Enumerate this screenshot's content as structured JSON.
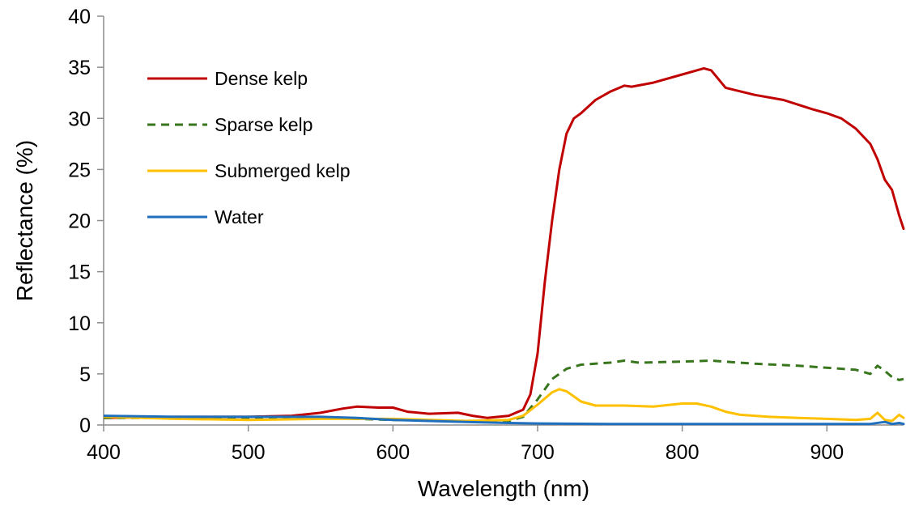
{
  "chart_data": {
    "type": "line",
    "xlabel": "Wavelength (nm)",
    "ylabel": "Reflectance (%)",
    "xlim": [
      400,
      953
    ],
    "ylim": [
      0,
      40
    ],
    "x_ticks": [
      400,
      500,
      600,
      700,
      800,
      900
    ],
    "y_ticks": [
      0,
      5,
      10,
      15,
      20,
      25,
      30,
      35,
      40
    ],
    "grid": false,
    "legend_position": "top-left",
    "series": [
      {
        "name": "Dense kelp",
        "color": "#c00000",
        "dash": "solid",
        "x": [
          400,
          450,
          500,
          530,
          550,
          565,
          575,
          590,
          600,
          610,
          625,
          645,
          655,
          665,
          680,
          690,
          695,
          700,
          705,
          710,
          715,
          720,
          725,
          730,
          740,
          750,
          760,
          765,
          780,
          800,
          810,
          815,
          820,
          830,
          850,
          870,
          890,
          900,
          910,
          920,
          930,
          935,
          940,
          945,
          950,
          953
        ],
        "y": [
          0.7,
          0.8,
          0.8,
          0.9,
          1.2,
          1.6,
          1.8,
          1.7,
          1.7,
          1.3,
          1.1,
          1.2,
          0.9,
          0.7,
          0.9,
          1.5,
          3.0,
          7.0,
          14.0,
          20.0,
          25.0,
          28.5,
          30.0,
          30.5,
          31.8,
          32.6,
          33.2,
          33.1,
          33.5,
          34.3,
          34.7,
          34.9,
          34.7,
          33.0,
          32.3,
          31.8,
          30.9,
          30.5,
          30.0,
          29.0,
          27.5,
          26.0,
          24.0,
          23.0,
          20.5,
          19.2
        ]
      },
      {
        "name": "Sparse kelp",
        "color": "#38761d",
        "dash": "dashed",
        "x": [
          400,
          450,
          500,
          550,
          600,
          650,
          680,
          690,
          700,
          710,
          720,
          730,
          750,
          760,
          770,
          800,
          820,
          850,
          880,
          900,
          920,
          930,
          935,
          940,
          945,
          950,
          953
        ],
        "y": [
          0.7,
          0.7,
          0.7,
          0.7,
          0.5,
          0.4,
          0.4,
          0.8,
          2.5,
          4.5,
          5.5,
          5.9,
          6.1,
          6.3,
          6.1,
          6.2,
          6.3,
          6.0,
          5.8,
          5.6,
          5.4,
          5.0,
          5.8,
          5.3,
          4.7,
          4.4,
          4.5
        ]
      },
      {
        "name": "Submerged kelp",
        "color": "#ffc000",
        "dash": "solid",
        "x": [
          400,
          450,
          500,
          550,
          600,
          650,
          680,
          690,
          700,
          710,
          715,
          720,
          725,
          730,
          740,
          760,
          780,
          800,
          810,
          820,
          830,
          840,
          860,
          880,
          900,
          920,
          930,
          935,
          940,
          945,
          950,
          953
        ],
        "y": [
          0.8,
          0.6,
          0.5,
          0.6,
          0.6,
          0.4,
          0.5,
          0.9,
          2.0,
          3.2,
          3.5,
          3.3,
          2.8,
          2.3,
          1.9,
          1.9,
          1.8,
          2.1,
          2.1,
          1.8,
          1.3,
          1.0,
          0.8,
          0.7,
          0.6,
          0.5,
          0.6,
          1.2,
          0.5,
          0.4,
          1.0,
          0.7
        ]
      },
      {
        "name": "Water",
        "color": "#1f6fbf",
        "dash": "solid",
        "x": [
          400,
          450,
          500,
          550,
          575,
          600,
          650,
          680,
          700,
          750,
          800,
          850,
          900,
          930,
          940,
          945,
          950,
          953
        ],
        "y": [
          0.9,
          0.8,
          0.8,
          0.8,
          0.7,
          0.5,
          0.3,
          0.2,
          0.15,
          0.1,
          0.1,
          0.1,
          0.1,
          0.1,
          0.3,
          0.1,
          0.2,
          0.1
        ]
      }
    ]
  }
}
